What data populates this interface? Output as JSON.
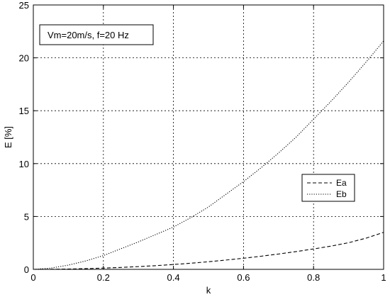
{
  "chart_data": {
    "type": "line",
    "title": "",
    "xlabel": "k",
    "ylabel": "E [%]",
    "xlim": [
      0,
      1
    ],
    "ylim": [
      0,
      25
    ],
    "xticks": [
      0,
      0.2,
      0.4,
      0.6,
      0.8,
      1
    ],
    "xtick_labels": [
      "0",
      "0.2",
      "0.4",
      "0.6",
      "0.8",
      "1"
    ],
    "yticks": [
      0,
      5,
      10,
      15,
      20,
      25
    ],
    "ytick_labels": [
      "0",
      "5",
      "10",
      "15",
      "20",
      "25"
    ],
    "grid": true,
    "legend_position": "right",
    "annotation": "Vm=20m/s, f=20 Hz",
    "x": [
      0,
      0.05,
      0.1,
      0.15,
      0.2,
      0.25,
      0.3,
      0.35,
      0.4,
      0.45,
      0.5,
      0.55,
      0.6,
      0.65,
      0.7,
      0.75,
      0.8,
      0.85,
      0.9,
      0.95,
      1.0
    ],
    "series": [
      {
        "name": "Ea",
        "line_style": "dashed",
        "color": "#000000",
        "values": [
          0,
          0.01,
          0.03,
          0.07,
          0.12,
          0.18,
          0.26,
          0.35,
          0.46,
          0.58,
          0.72,
          0.88,
          1.05,
          1.24,
          1.45,
          1.68,
          1.93,
          2.2,
          2.52,
          2.95,
          3.5
        ]
      },
      {
        "name": "Eb",
        "line_style": "dotted",
        "color": "#000000",
        "values": [
          0,
          0.12,
          0.4,
          0.8,
          1.3,
          1.95,
          2.6,
          3.3,
          4.0,
          4.9,
          5.9,
          7.1,
          8.3,
          9.6,
          11.0,
          12.5,
          14.2,
          15.9,
          17.7,
          19.6,
          21.6
        ]
      }
    ]
  }
}
